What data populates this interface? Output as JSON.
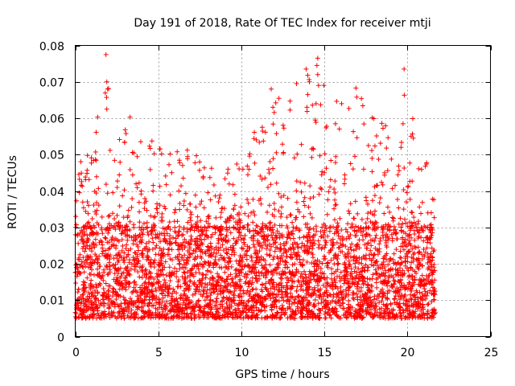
{
  "chart_data": {
    "type": "scatter",
    "title": "Day 191 of 2018, Rate Of TEC Index for receiver mtji",
    "xlabel": "GPS time / hours",
    "ylabel": "ROTI / TECUs",
    "xlim": [
      0,
      25
    ],
    "ylim": [
      0,
      0.08
    ],
    "xticks": [
      0,
      5,
      10,
      15,
      20,
      25
    ],
    "xtick_labels": [
      "0",
      "5",
      "10",
      "15",
      "20",
      "25"
    ],
    "yticks": [
      0,
      0.01,
      0.02,
      0.03,
      0.04,
      0.05,
      0.06,
      0.07,
      0.08
    ],
    "ytick_labels": [
      "0",
      "0.01",
      "0.02",
      "0.03",
      "0.04",
      "0.05",
      "0.06",
      "0.07",
      "0.08"
    ],
    "grid": true,
    "marker": "+",
    "color": "#ff0000",
    "data_time_range_hours": [
      0,
      21.7
    ],
    "core_value_range": [
      0.005,
      0.03
    ],
    "envelope": [
      {
        "x": 0.0,
        "ymax": 0.05
      },
      {
        "x": 1.0,
        "ymax": 0.05
      },
      {
        "x": 1.8,
        "ymax": 0.077
      },
      {
        "x": 2.5,
        "ymax": 0.055
      },
      {
        "x": 3.3,
        "ymax": 0.06
      },
      {
        "x": 5.0,
        "ymax": 0.055
      },
      {
        "x": 7.5,
        "ymax": 0.05
      },
      {
        "x": 10.0,
        "ymax": 0.05
      },
      {
        "x": 11.8,
        "ymax": 0.068
      },
      {
        "x": 14.0,
        "ymax": 0.074
      },
      {
        "x": 14.6,
        "ymax": 0.076
      },
      {
        "x": 16.9,
        "ymax": 0.068
      },
      {
        "x": 19.3,
        "ymax": 0.055
      },
      {
        "x": 19.8,
        "ymax": 0.0735
      },
      {
        "x": 21.0,
        "ymax": 0.052
      },
      {
        "x": 21.6,
        "ymax": 0.047
      }
    ],
    "outliers": [
      {
        "x": 1.85,
        "y": 0.0775
      },
      {
        "x": 1.9,
        "y": 0.07
      },
      {
        "x": 1.95,
        "y": 0.068
      },
      {
        "x": 1.9,
        "y": 0.0625
      },
      {
        "x": 3.3,
        "y": 0.0603
      },
      {
        "x": 11.8,
        "y": 0.068
      },
      {
        "x": 11.9,
        "y": 0.063
      },
      {
        "x": 13.9,
        "y": 0.0735
      },
      {
        "x": 14.0,
        "y": 0.0718
      },
      {
        "x": 14.1,
        "y": 0.07
      },
      {
        "x": 14.0,
        "y": 0.0665
      },
      {
        "x": 13.95,
        "y": 0.063
      },
      {
        "x": 14.6,
        "y": 0.0765
      },
      {
        "x": 14.55,
        "y": 0.0745
      },
      {
        "x": 14.6,
        "y": 0.072
      },
      {
        "x": 14.65,
        "y": 0.069
      },
      {
        "x": 14.5,
        "y": 0.064
      },
      {
        "x": 14.45,
        "y": 0.0595
      },
      {
        "x": 16.9,
        "y": 0.0683
      },
      {
        "x": 16.95,
        "y": 0.0658
      },
      {
        "x": 19.8,
        "y": 0.0735
      }
    ]
  }
}
